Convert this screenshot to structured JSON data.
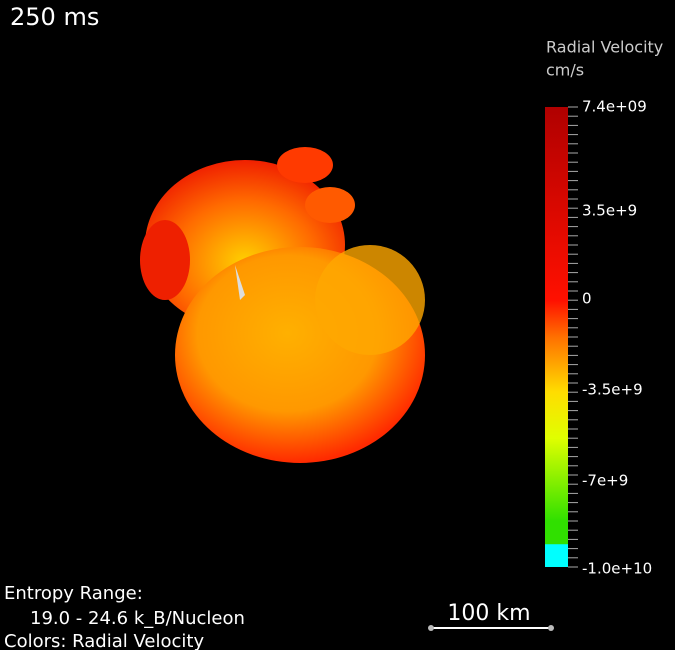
{
  "time_label": "250 ms",
  "colorbar": {
    "title": "Radial Velocity",
    "unit": "cm/s",
    "ticks": [
      "7.4e+09",
      "3.5e+9",
      "0",
      "-3.5e+9",
      "-7e+9",
      "-1.0e+10"
    ]
  },
  "caption": {
    "line1": "Entropy Range:",
    "line2": "19.0 - 24.6 k_B/Nucleon",
    "line3": "Colors: Radial Velocity"
  },
  "scale_bar": "100 km"
}
